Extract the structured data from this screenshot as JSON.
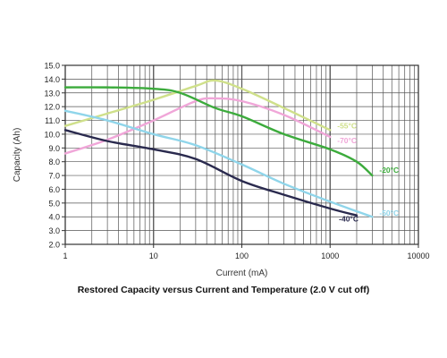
{
  "chart_data": {
    "type": "line",
    "title": "Restored Capacity versus Current and Temperature (2.0 V cut off)",
    "xlabel": "Current (mA)",
    "ylabel": "Capacity (Ah)",
    "x_scale": "log",
    "xlim": [
      1,
      10000
    ],
    "ylim": [
      2.0,
      15.0
    ],
    "x_ticks": [
      1,
      10,
      100,
      1000,
      10000
    ],
    "x_tick_labels": [
      "1",
      "10",
      "100",
      "1000",
      "10000"
    ],
    "y_ticks": [
      2.0,
      3.0,
      4.0,
      5.0,
      6.0,
      7.0,
      8.0,
      9.0,
      10.0,
      11.0,
      12.0,
      13.0,
      14.0,
      15.0
    ],
    "y_tick_labels": [
      "2.0",
      "3.0",
      "4.0",
      "5.0",
      "6.0",
      "7.0",
      "8.0",
      "9.0",
      "10.0",
      "11.0",
      "12.0",
      "13.0",
      "14.0",
      "15.0"
    ],
    "grid": true,
    "series": [
      {
        "name": "-55°C",
        "color": "#cfe08a",
        "x": [
          1,
          3,
          10,
          30,
          50,
          100,
          300,
          1000
        ],
        "y": [
          10.6,
          11.5,
          12.5,
          13.5,
          13.9,
          13.3,
          11.9,
          10.3
        ]
      },
      {
        "name": "-70°C",
        "color": "#f0a6d8",
        "x": [
          1,
          3,
          10,
          30,
          50,
          100,
          300,
          1000
        ],
        "y": [
          8.6,
          9.6,
          11.0,
          12.4,
          12.6,
          12.4,
          11.4,
          9.8
        ]
      },
      {
        "name": "-20°C",
        "color": "#3cab3c",
        "x": [
          1,
          3,
          10,
          20,
          50,
          100,
          300,
          1000,
          2000,
          3000
        ],
        "y": [
          13.4,
          13.4,
          13.3,
          13.0,
          11.9,
          11.3,
          10.0,
          8.9,
          8.0,
          7.0
        ]
      },
      {
        "name": "-50°C",
        "color": "#8fd5ea",
        "x": [
          1,
          3,
          10,
          30,
          100,
          300,
          1000,
          2000,
          3000
        ],
        "y": [
          11.7,
          11.0,
          10.0,
          9.2,
          7.8,
          6.4,
          5.1,
          4.4,
          4.0
        ]
      },
      {
        "name": "-40°C",
        "color": "#2a2a4e",
        "x": [
          1,
          3,
          10,
          30,
          100,
          300,
          1000,
          2000
        ],
        "y": [
          10.3,
          9.5,
          8.9,
          8.2,
          6.6,
          5.6,
          4.6,
          4.1
        ]
      }
    ]
  }
}
